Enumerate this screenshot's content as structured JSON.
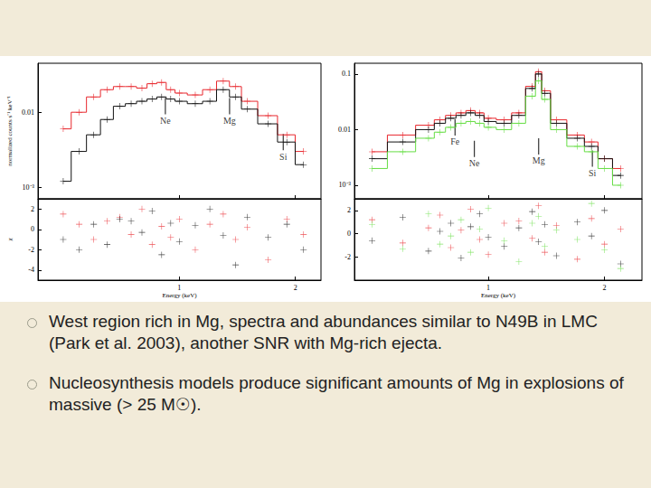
{
  "chart_data": [
    {
      "type": "line",
      "log": true,
      "tick_labels": "y",
      "ylabel": "normalized counts s⁻¹ keV⁻¹",
      "xlim": [
        0.43,
        2.33
      ],
      "xticks": [
        1,
        2
      ],
      "ylim": [
        0.0007,
        0.045
      ],
      "yticks": [
        {
          "value": 0.001,
          "label": "10⁻³"
        },
        0.01
      ],
      "x": [
        0.5,
        0.55,
        0.6,
        0.65,
        0.7,
        0.75,
        0.8,
        0.85,
        0.9,
        0.95,
        1.0,
        1.1,
        1.2,
        1.3,
        1.4,
        1.5,
        1.7,
        1.9,
        2.1
      ],
      "series": [
        {
          "color": "#e8282e",
          "marker": "cross",
          "line_style": "step",
          "values": [
            0.006,
            0.01,
            0.016,
            0.02,
            0.022,
            0.022,
            0.021,
            0.024,
            0.025,
            0.02,
            0.018,
            0.017,
            0.02,
            0.026,
            0.022,
            0.014,
            0.009,
            0.005,
            0.003
          ]
        },
        {
          "color": "#111111",
          "marker": "cross",
          "line_style": "step",
          "values": [
            0.0012,
            0.003,
            0.005,
            0.008,
            0.012,
            0.013,
            0.014,
            0.015,
            0.016,
            0.015,
            0.014,
            0.013,
            0.014,
            0.02,
            0.016,
            0.011,
            0.007,
            0.004,
            0.002
          ]
        }
      ],
      "annotations": [
        {
          "text": "Ne",
          "x": 0.92,
          "y": 0.012
        },
        {
          "text": "Mg",
          "x": 1.35,
          "y": 0.012
        },
        {
          "text": "Si",
          "x": 1.86,
          "y": 0.004
        }
      ]
    },
    {
      "type": "scatter",
      "log": "x",
      "xlabel": "Energy (keV)",
      "ylabel": "χ",
      "xlim": [
        0.43,
        2.33
      ],
      "xticks": [
        1,
        2
      ],
      "ylim": [
        -5,
        3
      ],
      "yticks": [
        -4,
        -2,
        0,
        2
      ],
      "x": [
        0.5,
        0.55,
        0.6,
        0.65,
        0.7,
        0.75,
        0.8,
        0.85,
        0.9,
        0.95,
        1.0,
        1.1,
        1.2,
        1.3,
        1.4,
        1.5,
        1.7,
        1.9,
        2.1
      ],
      "series": [
        {
          "color": "#e8282e",
          "marker": "cross",
          "values": [
            1.5,
            0.5,
            -1,
            0.8,
            1.2,
            -0.5,
            2,
            -1.5,
            0.3,
            -0.8,
            1,
            -2,
            0.5,
            1.5,
            -1,
            0.2,
            -3,
            1,
            -0.5
          ]
        },
        {
          "color": "#111111",
          "marker": "cross",
          "values": [
            -1,
            -2,
            0.5,
            -1.5,
            1,
            0.8,
            -0.3,
            1.8,
            -2.5,
            0.6,
            -1.2,
            0.4,
            2,
            -0.6,
            -3.5,
            1.2,
            -0.8,
            0.5,
            -2
          ]
        }
      ]
    },
    {
      "type": "line",
      "log": true,
      "tick_labels": "y",
      "xlim": [
        0.45,
        2.5
      ],
      "xticks": [
        1,
        2
      ],
      "ylim": [
        0.00057,
        0.156
      ],
      "yticks": [
        {
          "value": 0.001,
          "label": "10⁻³"
        },
        0.01,
        0.1
      ],
      "x": [
        0.5,
        0.6,
        0.7,
        0.75,
        0.8,
        0.85,
        0.9,
        0.95,
        1.0,
        1.1,
        1.2,
        1.3,
        1.35,
        1.4,
        1.5,
        1.7,
        1.85,
        2.0,
        2.2
      ],
      "series": [
        {
          "color": "#e8282e",
          "marker": "cross",
          "line_style": "step",
          "values": [
            0.004,
            0.008,
            0.012,
            0.015,
            0.018,
            0.02,
            0.022,
            0.02,
            0.016,
            0.015,
            0.02,
            0.06,
            0.11,
            0.05,
            0.015,
            0.008,
            0.006,
            0.003,
            0.002
          ]
        },
        {
          "color": "#111111",
          "marker": "cross",
          "line_style": "step",
          "values": [
            0.003,
            0.006,
            0.01,
            0.013,
            0.016,
            0.018,
            0.02,
            0.018,
            0.014,
            0.013,
            0.018,
            0.055,
            0.1,
            0.045,
            0.013,
            0.007,
            0.005,
            0.003,
            0.0015
          ]
        },
        {
          "color": "#66dd44",
          "marker": "cross",
          "line_style": "step",
          "values": [
            0.002,
            0.004,
            0.007,
            0.009,
            0.011,
            0.013,
            0.014,
            0.013,
            0.011,
            0.01,
            0.013,
            0.04,
            0.075,
            0.035,
            0.01,
            0.005,
            0.004,
            0.002,
            0.001
          ]
        }
      ],
      "annotations": [
        {
          "text": "Fe",
          "x": 0.82,
          "y": 0.011
        },
        {
          "text": "Ne",
          "x": 0.92,
          "y": 0.0045
        },
        {
          "text": "Mg",
          "x": 1.35,
          "y": 0.005
        },
        {
          "text": "Si",
          "x": 1.86,
          "y": 0.003
        }
      ]
    },
    {
      "type": "scatter",
      "log": "x",
      "xlabel": "Energy (keV)",
      "xlim": [
        0.45,
        2.5
      ],
      "xticks": [
        1,
        2
      ],
      "ylim": [
        -4,
        3
      ],
      "yticks": [
        -2,
        0,
        2
      ],
      "x": [
        0.5,
        0.6,
        0.7,
        0.75,
        0.8,
        0.85,
        0.9,
        0.95,
        1.0,
        1.1,
        1.2,
        1.3,
        1.35,
        1.4,
        1.5,
        1.7,
        1.85,
        2.0,
        2.2
      ],
      "series": [
        {
          "color": "#e8282e",
          "marker": "cross",
          "values": [
            1.2,
            -0.8,
            0.5,
            1.6,
            -1.2,
            0.3,
            2.1,
            -0.5,
            -1.8,
            0.9,
            1.1,
            -0.4,
            2.4,
            -1.6,
            0.7,
            -2.2,
            1.3,
            -0.9,
            0.4
          ]
        },
        {
          "color": "#111111",
          "marker": "cross",
          "values": [
            -0.6,
            1.4,
            -1.5,
            0.2,
            0.9,
            -2.1,
            0.6,
            1.7,
            -0.3,
            -1.1,
            0.5,
            1.9,
            -0.7,
            0.8,
            -1.9,
            1.0,
            -0.2,
            2.0,
            -2.6
          ]
        },
        {
          "color": "#66dd44",
          "marker": "cross",
          "values": [
            0.8,
            -1.3,
            1.7,
            -0.9,
            -0.2,
            1.2,
            -1.6,
            0.4,
            2.2,
            -0.6,
            -2.4,
            0.9,
            1.5,
            -1.1,
            0.3,
            -0.5,
            2.6,
            -1.4,
            -3.0
          ]
        }
      ]
    }
  ],
  "bullets": [
    "West region rich in Mg, spectra and abundances similar to N49B in LMC (Park et al. 2003), another SNR with Mg-rich ejecta.",
    "Nucleosynthesis models produce significant amounts of Mg in explosions of massive (> 25 M☉)."
  ]
}
